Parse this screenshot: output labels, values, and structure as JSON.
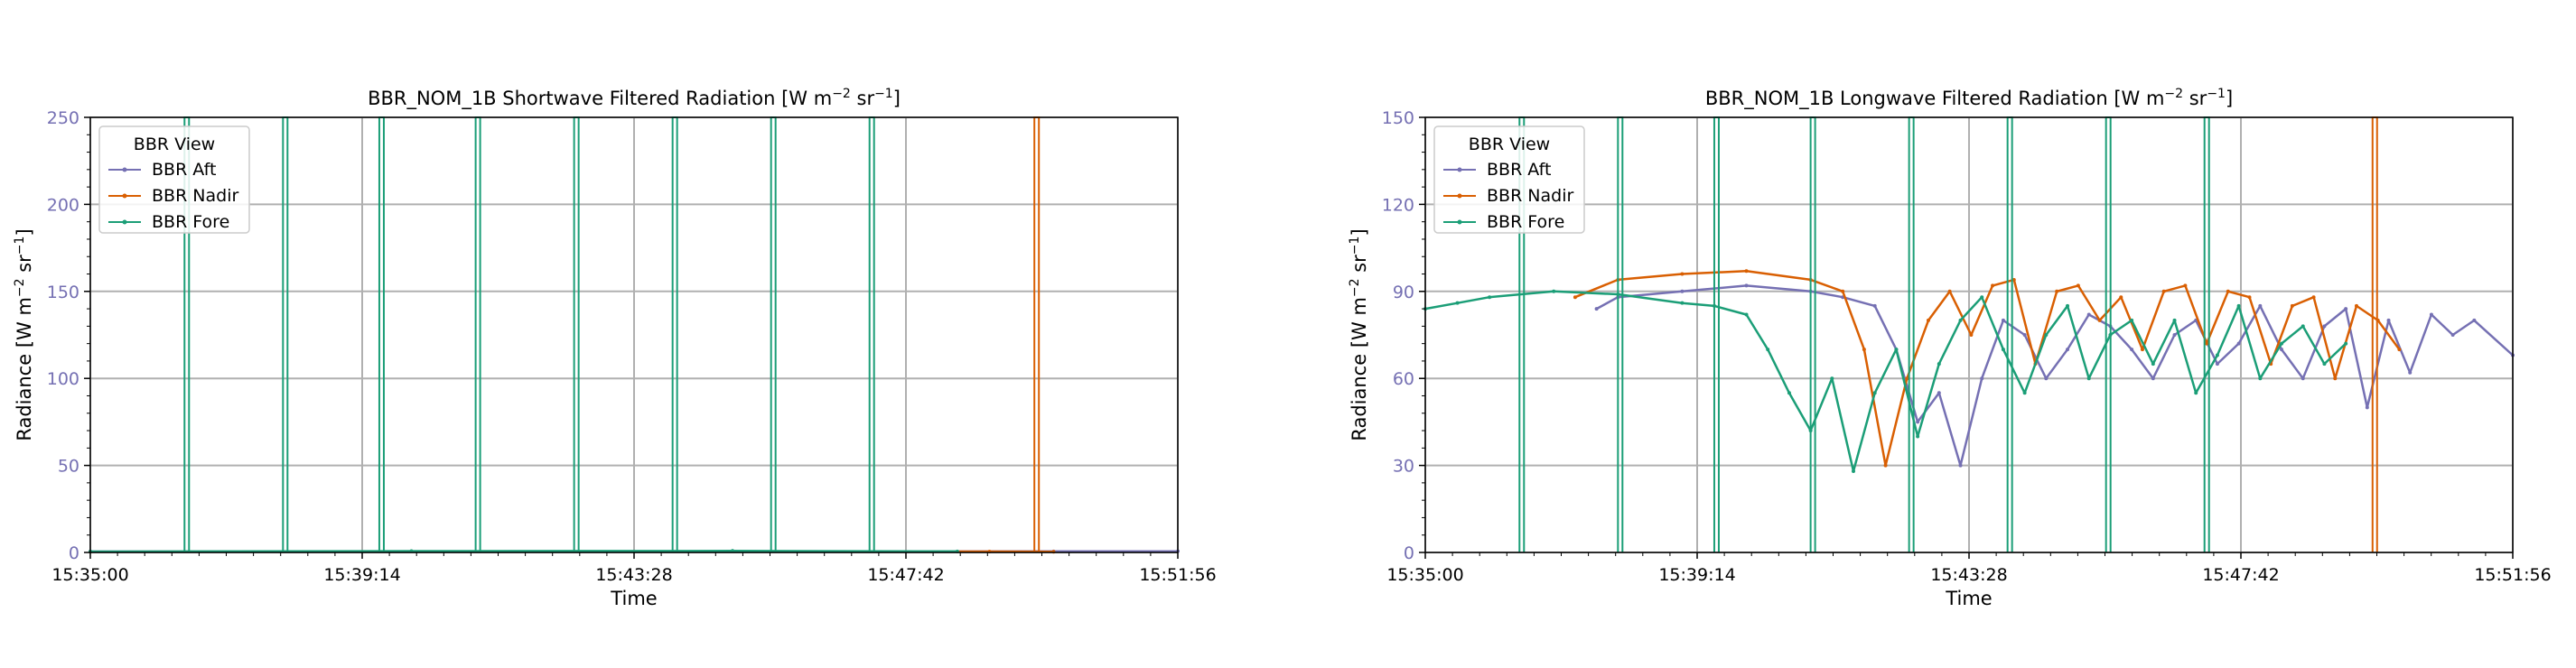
{
  "chart_data": [
    {
      "type": "line",
      "title": "BBR_NOM_1B Shortwave Filtered Radiation [W m$^{-2}$ sr$^{-1}$]",
      "title_parts": [
        "BBR_NOM_1B Shortwave Filtered Radiation [W m",
        "−2",
        " sr",
        "−1",
        "]"
      ],
      "xlabel": "Time",
      "ylabel_parts": [
        "Radiance [W m",
        "−2",
        " sr",
        "−1",
        "]"
      ],
      "ylim": [
        0,
        250
      ],
      "yticks": [
        0,
        50,
        100,
        150,
        200,
        250
      ],
      "ytick_color": "#7570b3",
      "xlim": [
        "15:35:00",
        "15:51:56"
      ],
      "xticks": [
        "15:35:00",
        "15:39:14",
        "15:43:28",
        "15:47:42",
        "15:51:56"
      ],
      "grid": true,
      "legend": {
        "title": "BBR View",
        "placement": "top-left"
      },
      "series": [
        {
          "name": "BBR Aft",
          "color": "#7570b3",
          "points": [
            [
              "15:35:00",
              0.5
            ],
            [
              "15:50:00",
              0.6
            ],
            [
              "15:51:56",
              0.7
            ]
          ],
          "spikes": []
        },
        {
          "name": "BBR Nadir",
          "color": "#d95f02",
          "points": [
            [
              "15:35:00",
              0.4
            ],
            [
              "15:49:00",
              0.5
            ],
            [
              "15:50:00",
              0.4
            ]
          ],
          "spikes": [
            "15:49:42"
          ]
        },
        {
          "name": "BBR Fore",
          "color": "#1b9e77",
          "points": [
            [
              "15:35:00",
              0.5
            ],
            [
              "15:40:00",
              0.8
            ],
            [
              "15:45:00",
              0.9
            ],
            [
              "15:48:30",
              0.6
            ]
          ],
          "spikes": [
            "15:36:28",
            "15:38:00",
            "15:39:30",
            "15:41:00",
            "15:42:32",
            "15:44:04",
            "15:45:36",
            "15:47:08"
          ]
        }
      ]
    },
    {
      "type": "line",
      "title": "BBR_NOM_1B Longwave Filtered Radiation [W m$^{-2}$ sr$^{-1}$]",
      "title_parts": [
        "BBR_NOM_1B Longwave Filtered Radiation [W m",
        "−2",
        " sr",
        "−1",
        "]"
      ],
      "xlabel": "Time",
      "ylabel_parts": [
        "Radiance [W m",
        "−2",
        " sr",
        "−1",
        "]"
      ],
      "ylim": [
        0,
        150
      ],
      "yticks": [
        0,
        30,
        60,
        90,
        120,
        150
      ],
      "ytick_color": "#7570b3",
      "xlim": [
        "15:35:00",
        "15:51:56"
      ],
      "xticks": [
        "15:35:00",
        "15:39:14",
        "15:43:28",
        "15:47:42",
        "15:51:56"
      ],
      "grid": true,
      "legend": {
        "title": "BBR View",
        "placement": "top-left"
      },
      "series": [
        {
          "name": "BBR Aft",
          "color": "#7570b3",
          "points": [
            [
              "15:37:40",
              84
            ],
            [
              "15:38:00",
              88
            ],
            [
              "15:39:00",
              90
            ],
            [
              "15:40:00",
              92
            ],
            [
              "15:41:00",
              90
            ],
            [
              "15:41:30",
              88
            ],
            [
              "15:42:00",
              85
            ],
            [
              "15:42:20",
              70
            ],
            [
              "15:42:40",
              45
            ],
            [
              "15:43:00",
              55
            ],
            [
              "15:43:20",
              30
            ],
            [
              "15:43:40",
              60
            ],
            [
              "15:44:00",
              80
            ],
            [
              "15:44:20",
              75
            ],
            [
              "15:44:40",
              60
            ],
            [
              "15:45:00",
              70
            ],
            [
              "15:45:20",
              82
            ],
            [
              "15:45:40",
              78
            ],
            [
              "15:46:00",
              70
            ],
            [
              "15:46:20",
              60
            ],
            [
              "15:46:40",
              75
            ],
            [
              "15:47:00",
              80
            ],
            [
              "15:47:20",
              65
            ],
            [
              "15:47:40",
              72
            ],
            [
              "15:48:00",
              85
            ],
            [
              "15:48:20",
              70
            ],
            [
              "15:48:40",
              60
            ],
            [
              "15:49:00",
              78
            ],
            [
              "15:49:20",
              84
            ],
            [
              "15:49:40",
              50
            ],
            [
              "15:50:00",
              80
            ],
            [
              "15:50:20",
              62
            ],
            [
              "15:50:40",
              82
            ],
            [
              "15:51:00",
              75
            ],
            [
              "15:51:20",
              80
            ],
            [
              "15:51:56",
              68
            ]
          ],
          "spikes": []
        },
        {
          "name": "BBR Nadir",
          "color": "#d95f02",
          "points": [
            [
              "15:37:20",
              88
            ],
            [
              "15:38:00",
              94
            ],
            [
              "15:39:00",
              96
            ],
            [
              "15:40:00",
              97
            ],
            [
              "15:41:00",
              94
            ],
            [
              "15:41:30",
              90
            ],
            [
              "15:41:50",
              70
            ],
            [
              "15:42:10",
              30
            ],
            [
              "15:42:30",
              60
            ],
            [
              "15:42:50",
              80
            ],
            [
              "15:43:10",
              90
            ],
            [
              "15:43:30",
              75
            ],
            [
              "15:43:50",
              92
            ],
            [
              "15:44:10",
              94
            ],
            [
              "15:44:30",
              65
            ],
            [
              "15:44:50",
              90
            ],
            [
              "15:45:10",
              92
            ],
            [
              "15:45:30",
              80
            ],
            [
              "15:45:50",
              88
            ],
            [
              "15:46:10",
              70
            ],
            [
              "15:46:30",
              90
            ],
            [
              "15:46:50",
              92
            ],
            [
              "15:47:10",
              72
            ],
            [
              "15:47:30",
              90
            ],
            [
              "15:47:50",
              88
            ],
            [
              "15:48:10",
              65
            ],
            [
              "15:48:30",
              85
            ],
            [
              "15:48:50",
              88
            ],
            [
              "15:49:10",
              60
            ],
            [
              "15:49:30",
              85
            ],
            [
              "15:49:50",
              80
            ],
            [
              "15:50:10",
              70
            ]
          ],
          "spikes": [
            "15:49:45"
          ]
        },
        {
          "name": "BBR Fore",
          "color": "#1b9e77",
          "points": [
            [
              "15:35:00",
              84
            ],
            [
              "15:35:30",
              86
            ],
            [
              "15:36:00",
              88
            ],
            [
              "15:37:00",
              90
            ],
            [
              "15:38:00",
              89
            ],
            [
              "15:39:00",
              86
            ],
            [
              "15:39:30",
              85
            ],
            [
              "15:40:00",
              82
            ],
            [
              "15:40:20",
              70
            ],
            [
              "15:40:40",
              55
            ],
            [
              "15:41:00",
              42
            ],
            [
              "15:41:20",
              60
            ],
            [
              "15:41:40",
              28
            ],
            [
              "15:42:00",
              55
            ],
            [
              "15:42:20",
              70
            ],
            [
              "15:42:40",
              40
            ],
            [
              "15:43:00",
              65
            ],
            [
              "15:43:20",
              80
            ],
            [
              "15:43:40",
              88
            ],
            [
              "15:44:00",
              70
            ],
            [
              "15:44:20",
              55
            ],
            [
              "15:44:40",
              75
            ],
            [
              "15:45:00",
              85
            ],
            [
              "15:45:20",
              60
            ],
            [
              "15:45:40",
              75
            ],
            [
              "15:46:00",
              80
            ],
            [
              "15:46:20",
              65
            ],
            [
              "15:46:40",
              80
            ],
            [
              "15:47:00",
              55
            ],
            [
              "15:47:20",
              68
            ],
            [
              "15:47:40",
              85
            ],
            [
              "15:48:00",
              60
            ],
            [
              "15:48:20",
              72
            ],
            [
              "15:48:40",
              78
            ],
            [
              "15:49:00",
              65
            ],
            [
              "15:49:20",
              72
            ]
          ],
          "spikes": [
            "15:36:28",
            "15:38:00",
            "15:39:30",
            "15:41:00",
            "15:42:32",
            "15:44:04",
            "15:45:36",
            "15:47:08"
          ]
        }
      ]
    }
  ]
}
